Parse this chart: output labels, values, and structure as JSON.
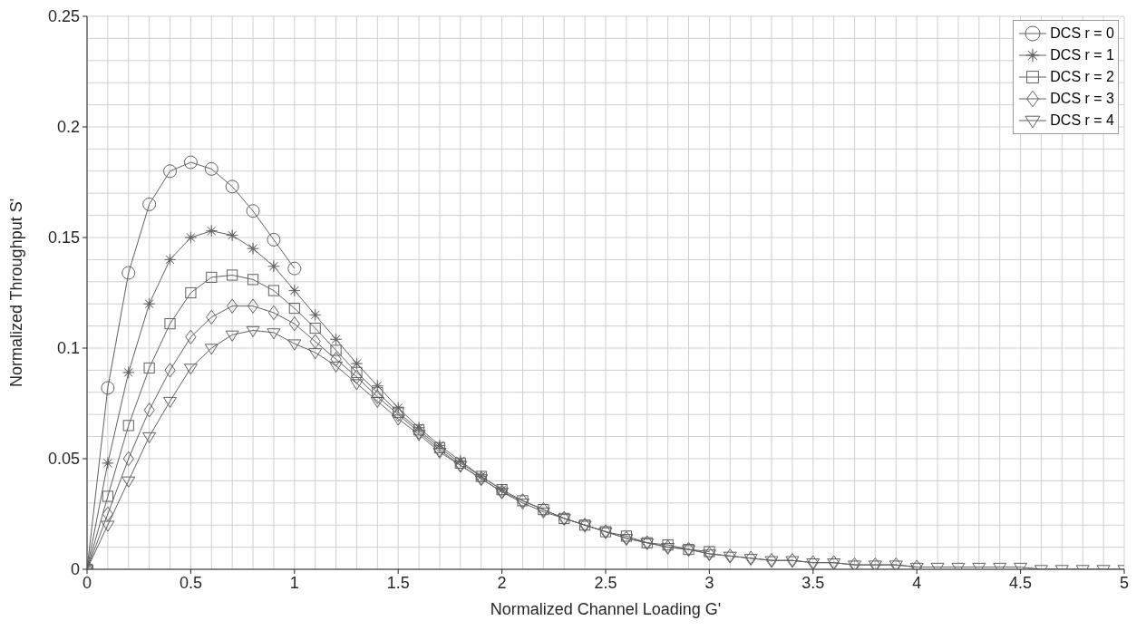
{
  "chart_data": {
    "type": "line",
    "xlabel": "Normalized Channel Loading G'",
    "ylabel": "Normalized Throughput S'",
    "xlim": [
      0,
      5
    ],
    "xticks": [
      0,
      0.5,
      1,
      1.5,
      2,
      2.5,
      3,
      3.5,
      4,
      4.5,
      5
    ],
    "ylim": [
      0,
      0.25
    ],
    "yticks": [
      0,
      0.05,
      0.1,
      0.15,
      0.2,
      0.25
    ],
    "grid": true,
    "legend": "top right",
    "series": [
      {
        "name": "DCS r = 0",
        "color": "#606060",
        "marker": "circle",
        "x": [
          0,
          0.1,
          0.2,
          0.3,
          0.4,
          0.5,
          0.6,
          0.7,
          0.8,
          0.9,
          1
        ],
        "values": [
          0,
          0.082,
          0.134,
          0.165,
          0.18,
          0.184,
          0.181,
          0.173,
          0.162,
          0.149,
          0.136
        ]
      },
      {
        "name": "DCS r = 1",
        "color": "#606060",
        "marker": "star",
        "x": [
          0,
          0.1,
          0.2,
          0.3,
          0.4,
          0.5,
          0.6,
          0.7,
          0.8,
          0.9,
          1,
          1.1,
          1.2,
          1.3,
          1.4,
          1.5,
          1.6,
          1.7,
          1.8,
          1.9,
          2
        ],
        "values": [
          0,
          0.048,
          0.089,
          0.12,
          0.14,
          0.15,
          0.153,
          0.151,
          0.145,
          0.137,
          0.126,
          0.115,
          0.104,
          0.093,
          0.083,
          0.073,
          0.064,
          0.056,
          0.049,
          0.042,
          0.036
        ]
      },
      {
        "name": "DCS r = 2",
        "color": "#606060",
        "marker": "square",
        "x": [
          0,
          0.1,
          0.2,
          0.3,
          0.4,
          0.5,
          0.6,
          0.7,
          0.8,
          0.9,
          1,
          1.1,
          1.2,
          1.3,
          1.4,
          1.5,
          1.6,
          1.7,
          1.8,
          1.9,
          2,
          2.1,
          2.2,
          2.3,
          2.4,
          2.5,
          2.6,
          2.7,
          2.8,
          2.9,
          3
        ],
        "values": [
          0,
          0.033,
          0.065,
          0.091,
          0.111,
          0.125,
          0.132,
          0.133,
          0.131,
          0.126,
          0.118,
          0.109,
          0.099,
          0.089,
          0.08,
          0.071,
          0.063,
          0.055,
          0.048,
          0.042,
          0.036,
          0.031,
          0.027,
          0.023,
          0.02,
          0.017,
          0.015,
          0.012,
          0.011,
          0.009,
          0.008
        ]
      },
      {
        "name": "DCS r = 3",
        "color": "#606060",
        "marker": "diamond",
        "x": [
          0,
          0.1,
          0.2,
          0.3,
          0.4,
          0.5,
          0.6,
          0.7,
          0.8,
          0.9,
          1,
          1.1,
          1.2,
          1.3,
          1.4,
          1.5,
          1.6,
          1.7,
          1.8,
          1.9,
          2,
          2.1,
          2.2,
          2.3,
          2.4,
          2.5,
          2.6,
          2.7,
          2.8,
          2.9,
          3,
          3.1,
          3.2,
          3.3,
          3.4,
          3.5,
          3.6,
          3.7,
          3.8,
          3.9,
          4
        ],
        "values": [
          0,
          0.025,
          0.05,
          0.072,
          0.09,
          0.105,
          0.114,
          0.119,
          0.119,
          0.116,
          0.111,
          0.103,
          0.095,
          0.087,
          0.078,
          0.07,
          0.062,
          0.054,
          0.047,
          0.041,
          0.035,
          0.031,
          0.027,
          0.023,
          0.02,
          0.017,
          0.014,
          0.012,
          0.01,
          0.009,
          0.007,
          0.006,
          0.005,
          0.004,
          0.004,
          0.003,
          0.003,
          0.002,
          0.002,
          0.002,
          0.001
        ]
      },
      {
        "name": "DCS r = 4",
        "color": "#606060",
        "marker": "triangle",
        "x": [
          0,
          0.1,
          0.2,
          0.3,
          0.4,
          0.5,
          0.6,
          0.7,
          0.8,
          0.9,
          1,
          1.1,
          1.2,
          1.3,
          1.4,
          1.5,
          1.6,
          1.7,
          1.8,
          1.9,
          2,
          2.1,
          2.2,
          2.3,
          2.4,
          2.5,
          2.6,
          2.7,
          2.8,
          2.9,
          3,
          3.1,
          3.2,
          3.3,
          3.4,
          3.5,
          3.6,
          3.7,
          3.8,
          3.9,
          4,
          4.1,
          4.2,
          4.3,
          4.4,
          4.5,
          4.6,
          4.7,
          4.8,
          4.9,
          5
        ],
        "values": [
          0,
          0.02,
          0.04,
          0.06,
          0.076,
          0.091,
          0.1,
          0.106,
          0.108,
          0.107,
          0.102,
          0.098,
          0.092,
          0.084,
          0.076,
          0.068,
          0.061,
          0.053,
          0.047,
          0.041,
          0.035,
          0.03,
          0.026,
          0.023,
          0.02,
          0.017,
          0.014,
          0.012,
          0.01,
          0.009,
          0.007,
          0.006,
          0.005,
          0.004,
          0.004,
          0.003,
          0.003,
          0.002,
          0.002,
          0.002,
          0.001,
          0.001,
          0.001,
          0.001,
          0.001,
          0.001,
          0,
          0,
          0,
          0,
          0
        ]
      }
    ]
  }
}
